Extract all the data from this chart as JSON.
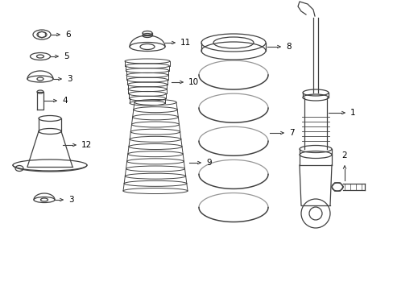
{
  "background_color": "#ffffff",
  "line_color": "#404040",
  "text_color": "#000000",
  "figsize": [
    4.89,
    3.6
  ],
  "dpi": 100
}
